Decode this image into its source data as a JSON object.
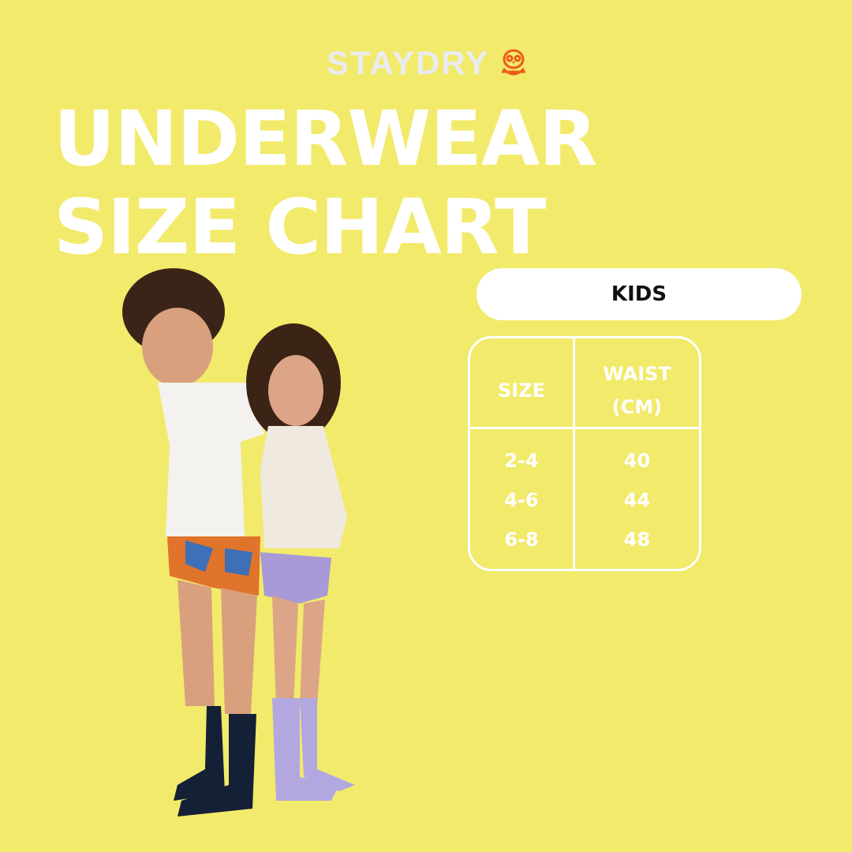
{
  "brand": {
    "name": "STAYDRY",
    "logo_icon": "penguin-icon",
    "logo_color": "#ee5a1c"
  },
  "title": {
    "line1": "UNDERWEAR",
    "line2": "SIZE CHART"
  },
  "category": "KIDS",
  "table": {
    "headers": [
      "SIZE",
      "WAIST",
      "(CM)"
    ],
    "rows": [
      {
        "size": "2-4",
        "waist": "40"
      },
      {
        "size": "4-6",
        "waist": "44"
      },
      {
        "size": "6-8",
        "waist": "48"
      }
    ]
  },
  "colors": {
    "background": "#f2ea6b",
    "text": "#ffffff"
  }
}
